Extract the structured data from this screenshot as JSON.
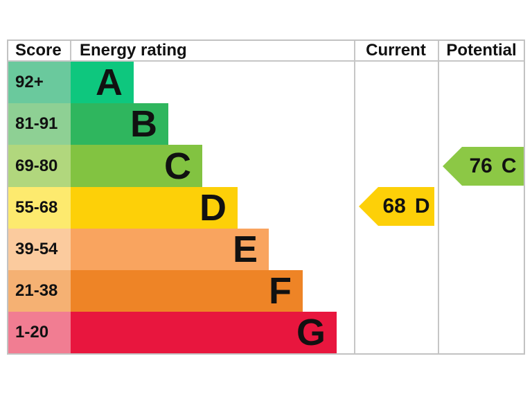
{
  "header": {
    "score": "Score",
    "energy_rating": "Energy rating",
    "current": "Current",
    "potential": "Potential"
  },
  "chart_data": {
    "type": "bar",
    "subtype": "epc-energy-rating-chart",
    "columns": [
      "Score",
      "Energy rating",
      "Current",
      "Potential"
    ],
    "bands": [
      {
        "letter": "A",
        "score_range": "92+",
        "color": "#0ec77e",
        "score_bg": "#6ac99d"
      },
      {
        "letter": "B",
        "score_range": "81-91",
        "color": "#2fb65e",
        "score_bg": "#8ed094"
      },
      {
        "letter": "C",
        "score_range": "69-80",
        "color": "#82c341",
        "score_bg": "#b1d77d"
      },
      {
        "letter": "D",
        "score_range": "55-68",
        "color": "#fdd008",
        "score_bg": "#fdea6e"
      },
      {
        "letter": "E",
        "score_range": "39-54",
        "color": "#f9a45f",
        "score_bg": "#fbcb9e"
      },
      {
        "letter": "F",
        "score_range": "21-38",
        "color": "#ee8426",
        "score_bg": "#f5b173"
      },
      {
        "letter": "G",
        "score_range": "1-20",
        "color": "#e8163e",
        "score_bg": "#f17d92"
      }
    ],
    "current": {
      "value": "68",
      "band": "D",
      "color": "#fdd008"
    },
    "potential": {
      "value": "76",
      "band": "C",
      "color": "#8cc845"
    },
    "line_color": "#c6c6c6",
    "text_color": "#111111"
  }
}
